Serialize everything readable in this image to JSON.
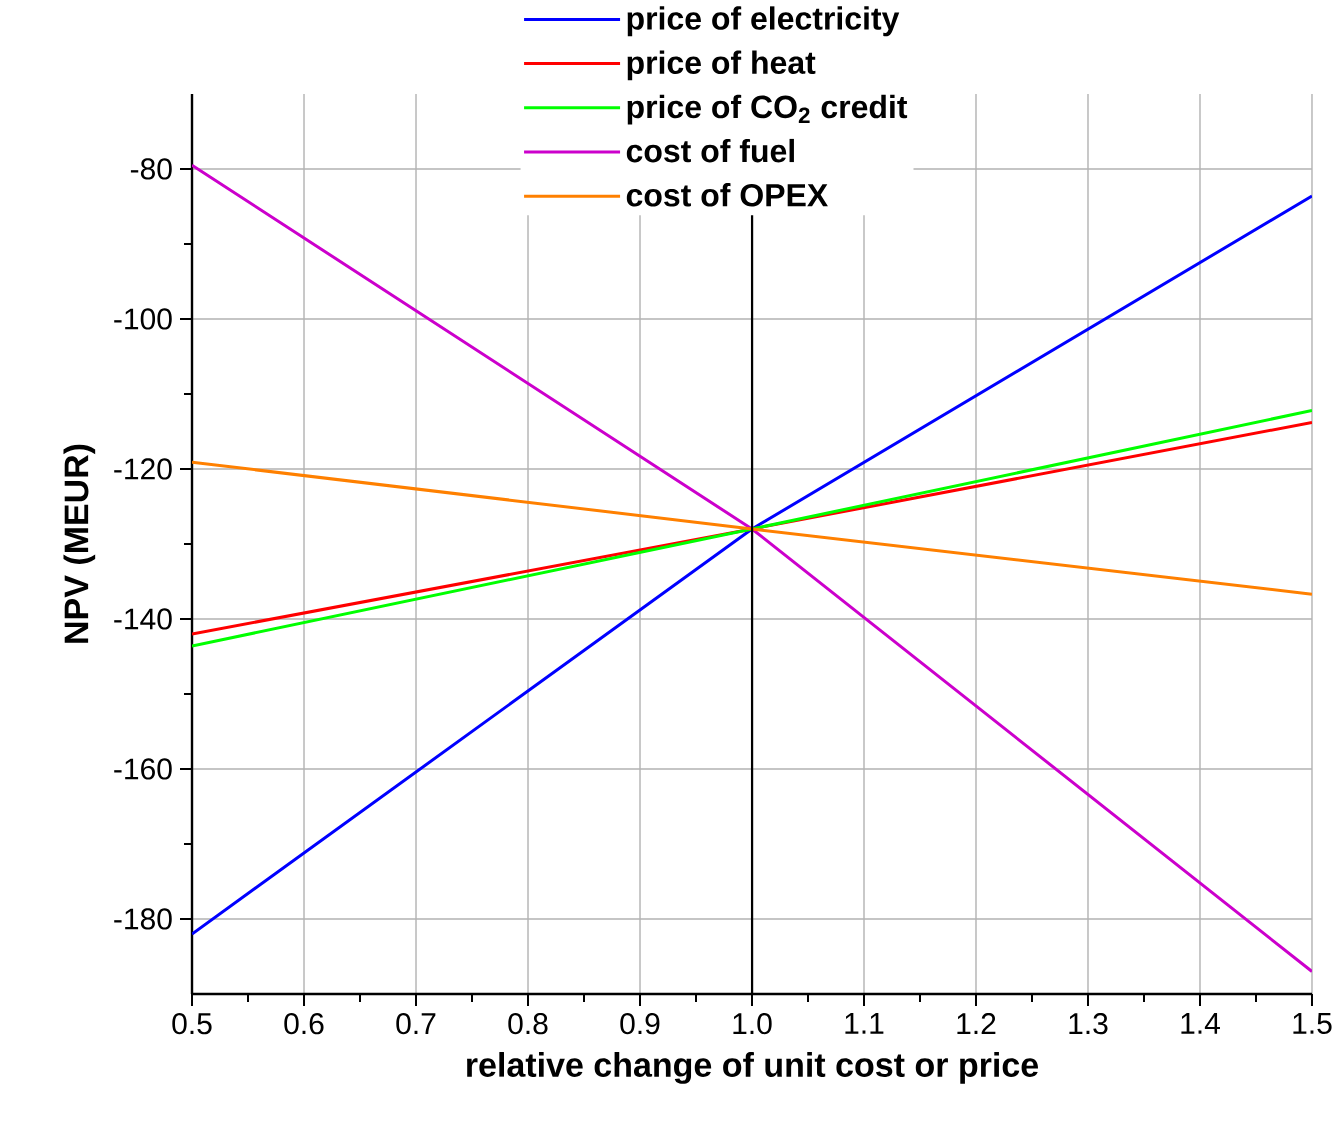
{
  "chart_data": {
    "type": "line",
    "xlabel": "relative change of unit cost or price",
    "ylabel": "NPV (MEUR)",
    "x": [
      0.5,
      1.0,
      1.5
    ],
    "series": [
      {
        "name": "price of electricity",
        "color": "#0000ff",
        "values": [
          -182.0,
          -128.0,
          -83.6
        ]
      },
      {
        "name": "price of heat",
        "color": "#ff0000",
        "values": [
          -142.0,
          -128.0,
          -113.8
        ]
      },
      {
        "name": "price of CO$_{2}$ credit",
        "color": "#00ff00",
        "values": [
          -143.6,
          -128.0,
          -112.2
        ]
      },
      {
        "name": "cost of fuel",
        "color": "#cc00cc",
        "values": [
          -79.5,
          -128.0,
          -187.0
        ]
      },
      {
        "name": "cost of OPEX",
        "color": "#ff8000",
        "values": [
          -119.1,
          -128.0,
          -136.7
        ]
      }
    ],
    "xlim": [
      0.5,
      1.5
    ],
    "ylim": [
      -190,
      -70
    ],
    "xticks": [
      0.5,
      0.6,
      0.7,
      0.8,
      0.9,
      {
        "value": 1.0,
        "label": "1.0"
      },
      1.1,
      1.2,
      1.3,
      1.4,
      1.5
    ],
    "yticks": [
      -180,
      -160,
      -140,
      -120,
      -100,
      -80
    ],
    "ref_lines": [
      {
        "axis": "x",
        "value": 1.0,
        "color": "#000000"
      }
    ],
    "grid": true,
    "legend": "top",
    "marker": "none",
    "line_style": "solid"
  }
}
